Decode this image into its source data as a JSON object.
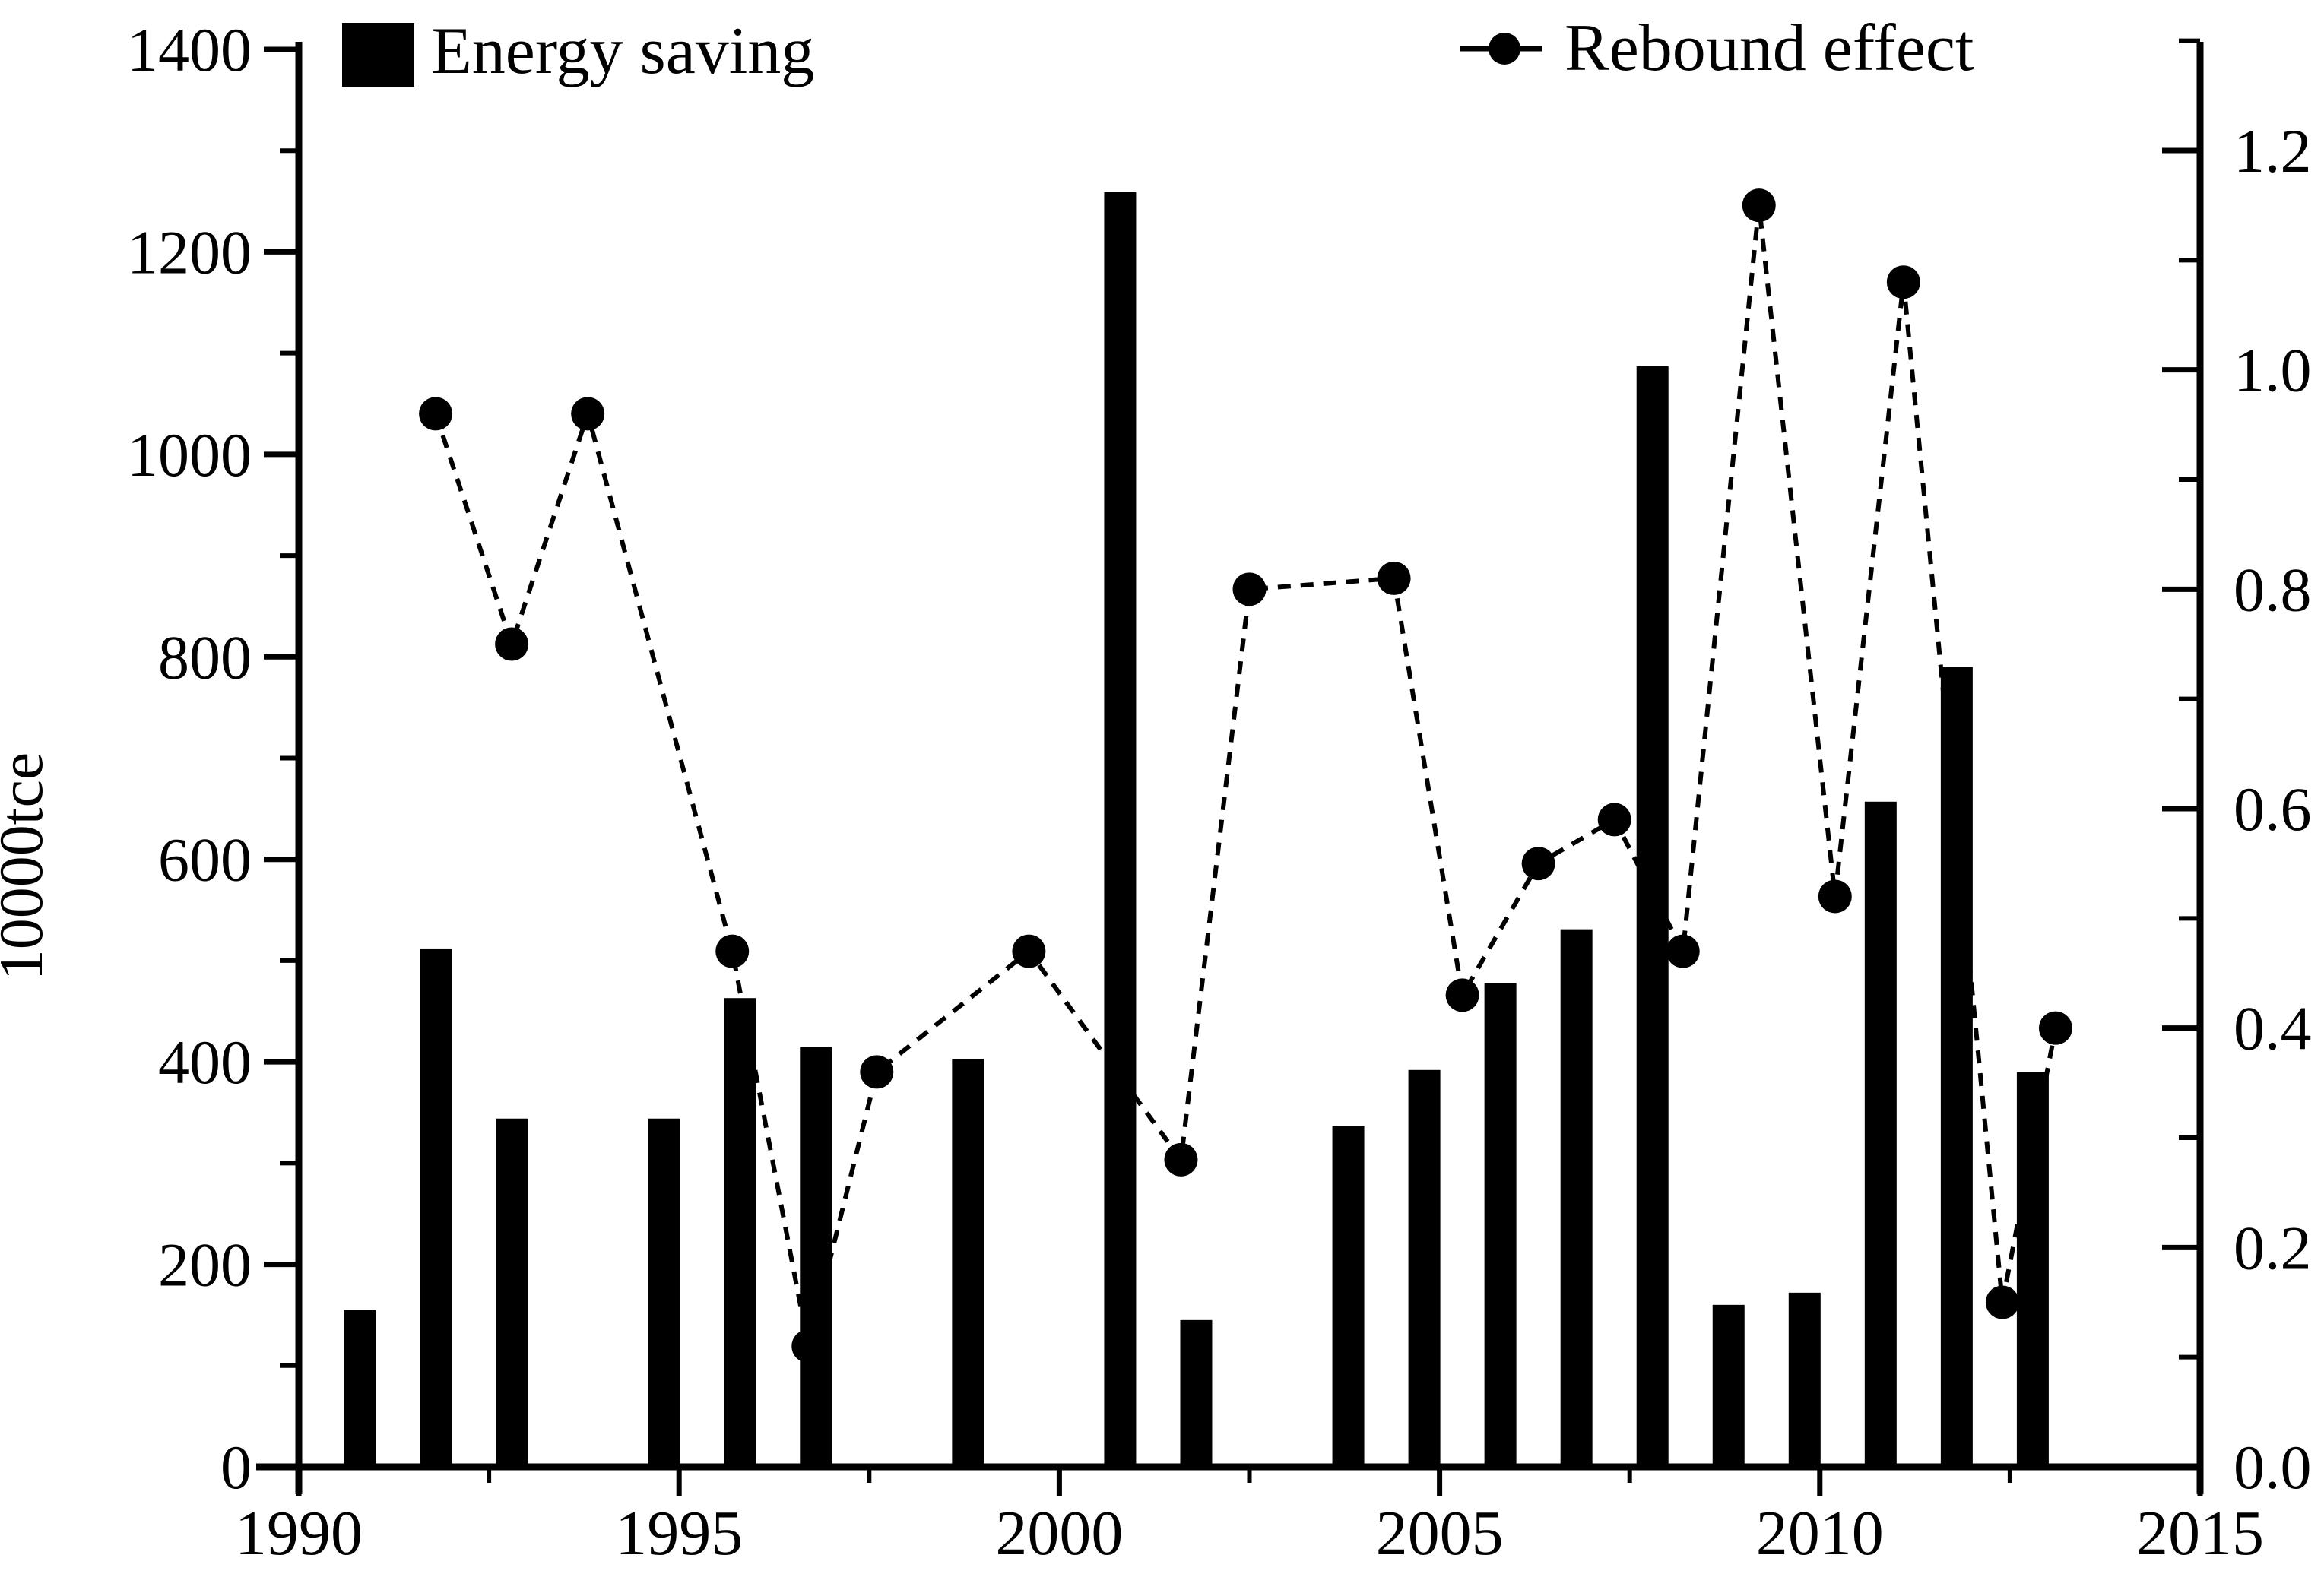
{
  "page": {
    "background": "#ffffff",
    "foreground": "#000000"
  },
  "chart_data": {
    "type": "bar",
    "subtype": "bar+line dual-axis combo",
    "title": "",
    "x_axis": {
      "label": "",
      "min": 1990,
      "max": 2015,
      "major_tick_labels": [
        "1990",
        "1995",
        "2000",
        "2005",
        "2010",
        "2015"
      ],
      "minor_tick_step": 2.5,
      "grid": false
    },
    "left_y_axis": {
      "label": "10000tce",
      "min": 0,
      "max": 1400,
      "major_tick_labels": [
        "0",
        "200",
        "400",
        "600",
        "800",
        "1000",
        "1200",
        "1400"
      ],
      "minor_tick_step": 100,
      "applies_to": "Energy saving"
    },
    "right_y_axis": {
      "label": "",
      "min": 0.0,
      "max": 1.3,
      "major_tick_labels": [
        "0.0",
        "0.2",
        "0.4",
        "0.6",
        "0.8",
        "1.0",
        "1.2"
      ],
      "minor_tick_step": 0.1,
      "applies_to": "Rebound effect"
    },
    "legend": {
      "position": "top",
      "items": [
        {
          "label": "Energy saving",
          "symbol": "filled-black-rectangle"
        },
        {
          "label": "Rebound effect",
          "symbol": "dashed-line-with-filled-dot"
        }
      ]
    },
    "series": [
      {
        "name": "Energy saving",
        "type": "bar",
        "axis": "left",
        "color": "#000000",
        "years": [
          1991,
          1992,
          1993,
          1995,
          1996,
          1997,
          1999,
          2001,
          2002,
          2004,
          2005,
          2006,
          2007,
          2008,
          2009,
          2010,
          2011,
          2012,
          2013
        ],
        "values": [
          155,
          512,
          344,
          344,
          463,
          415,
          403,
          1259,
          145,
          337,
          392,
          478,
          531,
          1087,
          160,
          172,
          657,
          790,
          390
        ]
      },
      {
        "name": "Rebound effect",
        "type": "line",
        "axis": "right",
        "color": "#000000",
        "line_style": "dashed",
        "marker": "filled-circle",
        "years": [
          1992,
          1993,
          1994,
          1996,
          1997,
          1998,
          2000,
          2002,
          2003,
          2004,
          2005,
          2006,
          2007,
          2008,
          2009,
          2010,
          2011,
          2012,
          2013
        ],
        "values": [
          0.96,
          0.75,
          0.96,
          0.47,
          0.11,
          0.36,
          0.47,
          0.28,
          0.8,
          0.81,
          0.43,
          0.55,
          0.59,
          0.47,
          1.15,
          0.52,
          1.08,
          0.15,
          0.4
        ],
        "x_positions": [
          1991.8,
          1992.8,
          1993.8,
          1995.7,
          1996.7,
          1997.6,
          1999.6,
          2001.6,
          2002.5,
          2004.4,
          2005.3,
          2006.3,
          2007.3,
          2008.2,
          2009.2,
          2010.2,
          2011.1,
          2012.4,
          2013.1
        ]
      }
    ],
    "layout_hints": {
      "bars_centered_offset_years": -0.2,
      "legend_position": "top-inside",
      "grid": false
    }
  },
  "labels": {
    "y_left_title": "10000tce",
    "legend_energy": "Energy saving",
    "legend_rebound": "Rebound effect"
  }
}
